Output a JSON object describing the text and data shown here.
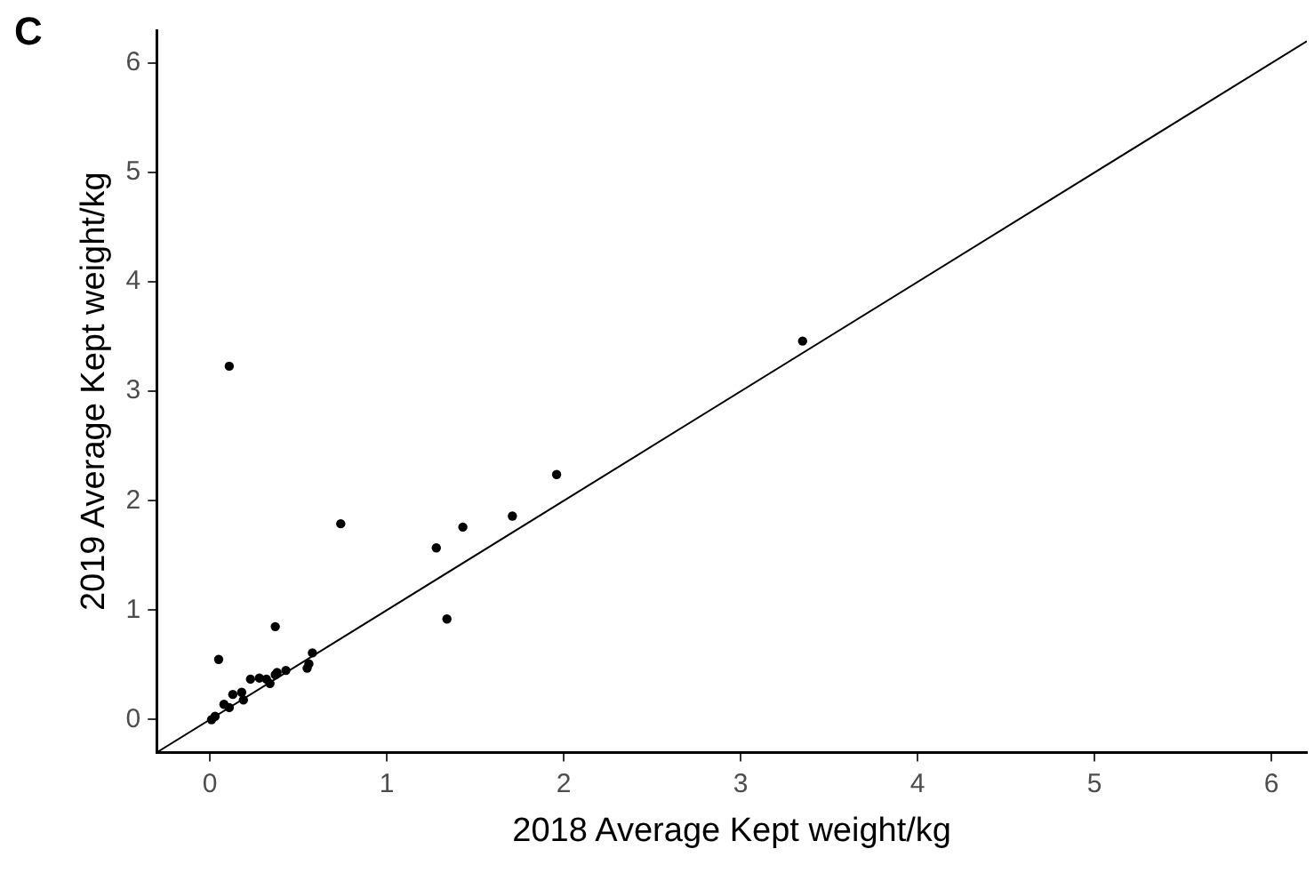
{
  "chart_data": {
    "type": "scatter",
    "title": "C",
    "xlabel": "2018 Average Kept weight/kg",
    "ylabel": "2019 Average Kept weight/kg",
    "xlim": [
      -0.3,
      6.2
    ],
    "ylim": [
      -0.3,
      6.3
    ],
    "xticks": [
      0,
      1,
      2,
      3,
      4,
      5,
      6
    ],
    "yticks": [
      0,
      1,
      2,
      3,
      4,
      5,
      6
    ],
    "grid": false,
    "legend": false,
    "marker": "circle",
    "series": [
      {
        "color": "#000000",
        "x": [
          0.11,
          0.37,
          0.74,
          1.28,
          1.43,
          1.34,
          1.71,
          1.96,
          3.35,
          0.05,
          0.01,
          0.03,
          0.08,
          0.11,
          0.13,
          0.18,
          0.19,
          0.23,
          0.28,
          0.32,
          0.34,
          0.37,
          0.38,
          0.43,
          0.55,
          0.56,
          0.58
        ],
        "values": [
          3.23,
          0.85,
          1.79,
          1.57,
          1.76,
          0.92,
          1.86,
          2.24,
          3.46,
          0.55,
          0.0,
          0.03,
          0.14,
          0.11,
          0.23,
          0.25,
          0.18,
          0.37,
          0.38,
          0.37,
          0.33,
          0.41,
          0.43,
          0.45,
          0.47,
          0.51,
          0.61
        ]
      },
      {
        "type": "line",
        "color": "#000000",
        "line_style": "solid",
        "marker": "none",
        "x": [
          -0.3,
          6.2
        ],
        "values": [
          -0.3,
          6.2
        ]
      }
    ]
  }
}
